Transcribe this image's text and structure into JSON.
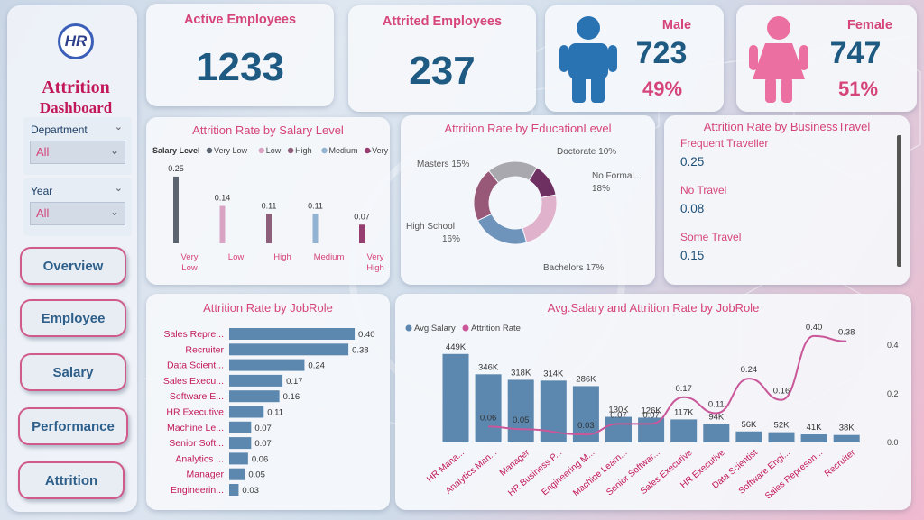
{
  "sidebar": {
    "logo_text": "HR",
    "title_line1": "Attrition",
    "title_line2": "Dashboard",
    "filters": [
      {
        "label": "Department",
        "value": "All"
      },
      {
        "label": "Year",
        "value": "All"
      }
    ],
    "nav": [
      "Overview",
      "Employee",
      "Salary",
      "Performance",
      "Attrition"
    ]
  },
  "kpis": {
    "active": {
      "label": "Active Employees",
      "value": "1233"
    },
    "attrited": {
      "label": "Attrited Employees",
      "value": "237"
    },
    "male": {
      "label": "Male",
      "value": "723",
      "pct": "49%"
    },
    "female": {
      "label": "Female",
      "value": "747",
      "pct": "51%"
    }
  },
  "colors": {
    "accent_pink": "#d6457a",
    "navy": "#1e5a82",
    "bar_blue": "#5c87ae",
    "male_icon": "#2a73b3",
    "female_icon": "#ec6fa1"
  },
  "business_travel": {
    "title": "Attrition Rate by BusinessTravel",
    "items": [
      {
        "label": "Frequent Traveller",
        "value": "0.25"
      },
      {
        "label": "No Travel",
        "value": "0.08"
      },
      {
        "label": "Some Travel",
        "value": "0.15"
      }
    ]
  },
  "chart_data": [
    {
      "type": "bar",
      "title": "Attrition Rate by Salary Level",
      "legend_title": "Salary Level",
      "legend_position": "top-left",
      "categories": [
        "Very Low",
        "Low",
        "High",
        "Medium",
        "Very High"
      ],
      "category_lines": [
        [
          "Very",
          "Low"
        ],
        [
          "Low"
        ],
        [
          "High"
        ],
        [
          "Medium"
        ],
        [
          "Very",
          "High"
        ]
      ],
      "values": [
        0.25,
        0.14,
        0.11,
        0.11,
        0.07
      ],
      "value_labels": [
        "0.25",
        "0.14",
        "0.11",
        "0.11",
        "0.07"
      ],
      "colors": [
        "#5c6470",
        "#d9a3c4",
        "#8e5f7a",
        "#93b3d2",
        "#963e70"
      ],
      "ylim": [
        0,
        0.27
      ]
    },
    {
      "type": "pie",
      "title": "Attrition Rate by EducationLevel",
      "slices": [
        {
          "label": "Doctorate",
          "value": 10,
          "pct": "10%",
          "color": "#6e2f61"
        },
        {
          "label": "No Formal...",
          "value": 18,
          "pct": "18%",
          "color": "#e1b2cb"
        },
        {
          "label": "Bachelors",
          "value": 17,
          "pct": "17%",
          "color": "#6f94bb"
        },
        {
          "label": "High School",
          "value": 16,
          "pct": "16%",
          "color": "#985878"
        },
        {
          "label": "Masters",
          "value": 15,
          "pct": "15%",
          "color": "#a8a8ae"
        }
      ]
    },
    {
      "type": "bar",
      "orientation": "horizontal",
      "title": "Attrition Rate by JobRole",
      "categories": [
        "Sales Repre...",
        "Recruiter",
        "Data Scient...",
        "Sales Execu...",
        "Software E...",
        "HR Executive",
        "Machine Le...",
        "Senior Soft...",
        "Analytics ...",
        "Manager",
        "Engineerin..."
      ],
      "values": [
        0.4,
        0.38,
        0.24,
        0.17,
        0.16,
        0.11,
        0.07,
        0.07,
        0.06,
        0.05,
        0.03
      ],
      "value_labels": [
        "0.40",
        "0.38",
        "0.24",
        "0.17",
        "0.16",
        "0.11",
        "0.07",
        "0.07",
        "0.06",
        "0.05",
        "0.03"
      ],
      "xlim": [
        0,
        0.42
      ]
    },
    {
      "type": "bar",
      "title": "Avg.Salary and Attrition Rate by JobRole",
      "legend_position": "top-left",
      "categories": [
        "HR Mana...",
        "Analytics Man...",
        "Manager",
        "HR Business P...",
        "Engineering M...",
        "Machine Learn...",
        "Senior Softwar...",
        "Sales Executive",
        "HR Executive",
        "Data Scientist",
        "Software Engi...",
        "Sales Represen...",
        "Recruiter"
      ],
      "series": [
        {
          "name": "Avg.Salary",
          "type": "bar",
          "values": [
            449,
            346,
            318,
            314,
            286,
            130,
            126,
            117,
            94,
            56,
            52,
            41,
            38
          ],
          "labels": [
            "449K",
            "346K",
            "318K",
            "314K",
            "286K",
            "130K",
            "126K",
            "117K",
            "94K",
            "56K",
            "52K",
            "41K",
            "38K"
          ],
          "color": "#5c87ae"
        },
        {
          "name": "Attrition Rate",
          "type": "line",
          "axis": "right",
          "values": [
            null,
            0.06,
            0.05,
            null,
            0.03,
            0.07,
            0.07,
            0.17,
            0.11,
            0.24,
            0.16,
            0.4,
            0.38
          ],
          "labels": [
            "",
            "0.06",
            "0.05",
            "",
            "0.03",
            "0.07",
            "0.07",
            "0.17",
            "0.11",
            "0.24",
            "0.16",
            "0.40",
            "0.38"
          ],
          "color": "#c9579a"
        }
      ],
      "y2_ticks": [
        "0.4",
        "0.2",
        "0.0"
      ],
      "ylim": [
        0,
        480
      ],
      "y2lim": [
        0,
        0.44
      ]
    }
  ]
}
